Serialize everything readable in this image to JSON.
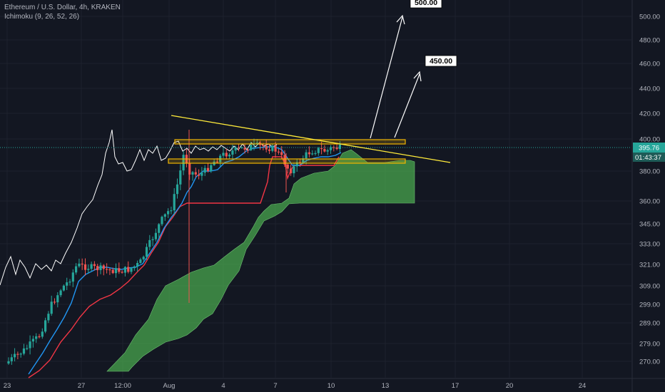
{
  "header": {
    "symbol_line": "Ethereum / U.S. Dollar, 4h, KRAKEN",
    "indicator_line": "Ichimoku (9, 26, 52, 26)"
  },
  "colors": {
    "background": "#131722",
    "grid": "#1e222d",
    "bull_candle": "#26a69a",
    "bear_candle": "#ef5350",
    "tenkan": "#2196f3",
    "kijun": "#f23645",
    "chikou": "#ffffff",
    "cloud": "#4caf50",
    "trendline": "#ffeb3b",
    "zone": "#f0b400",
    "price_line": "#26a69a"
  },
  "price_tag": {
    "value": "395.76",
    "countdown": "01:43:37"
  },
  "chart_data": {
    "type": "candlestick",
    "y_axis_ticks": [
      "500.00",
      "480.00",
      "460.00",
      "440.00",
      "420.00",
      "400.00",
      "380.00",
      "360.00",
      "345.00",
      "333.00",
      "321.00",
      "309.00",
      "299.00",
      "289.00",
      "279.00",
      "270.00"
    ],
    "x_axis_ticks": [
      "23",
      "27",
      "12:00",
      "Aug",
      "4",
      "7",
      "10",
      "13",
      "17",
      "20",
      "24"
    ],
    "log_scale": true,
    "annotations": [
      {
        "type": "target",
        "label": "500.00"
      },
      {
        "type": "target",
        "label": "450.00"
      },
      {
        "type": "descending_trendline"
      },
      {
        "type": "horizontal_zone",
        "range": [
          398,
          401
        ]
      },
      {
        "type": "horizontal_zone",
        "range": [
          384,
          387
        ]
      }
    ],
    "series": [
      {
        "name": "candles",
        "type": "candlestick"
      },
      {
        "name": "Tenkan",
        "type": "line"
      },
      {
        "name": "Kijun",
        "type": "line"
      },
      {
        "name": "Chikou",
        "type": "line"
      },
      {
        "name": "Kumo",
        "type": "area"
      }
    ]
  }
}
